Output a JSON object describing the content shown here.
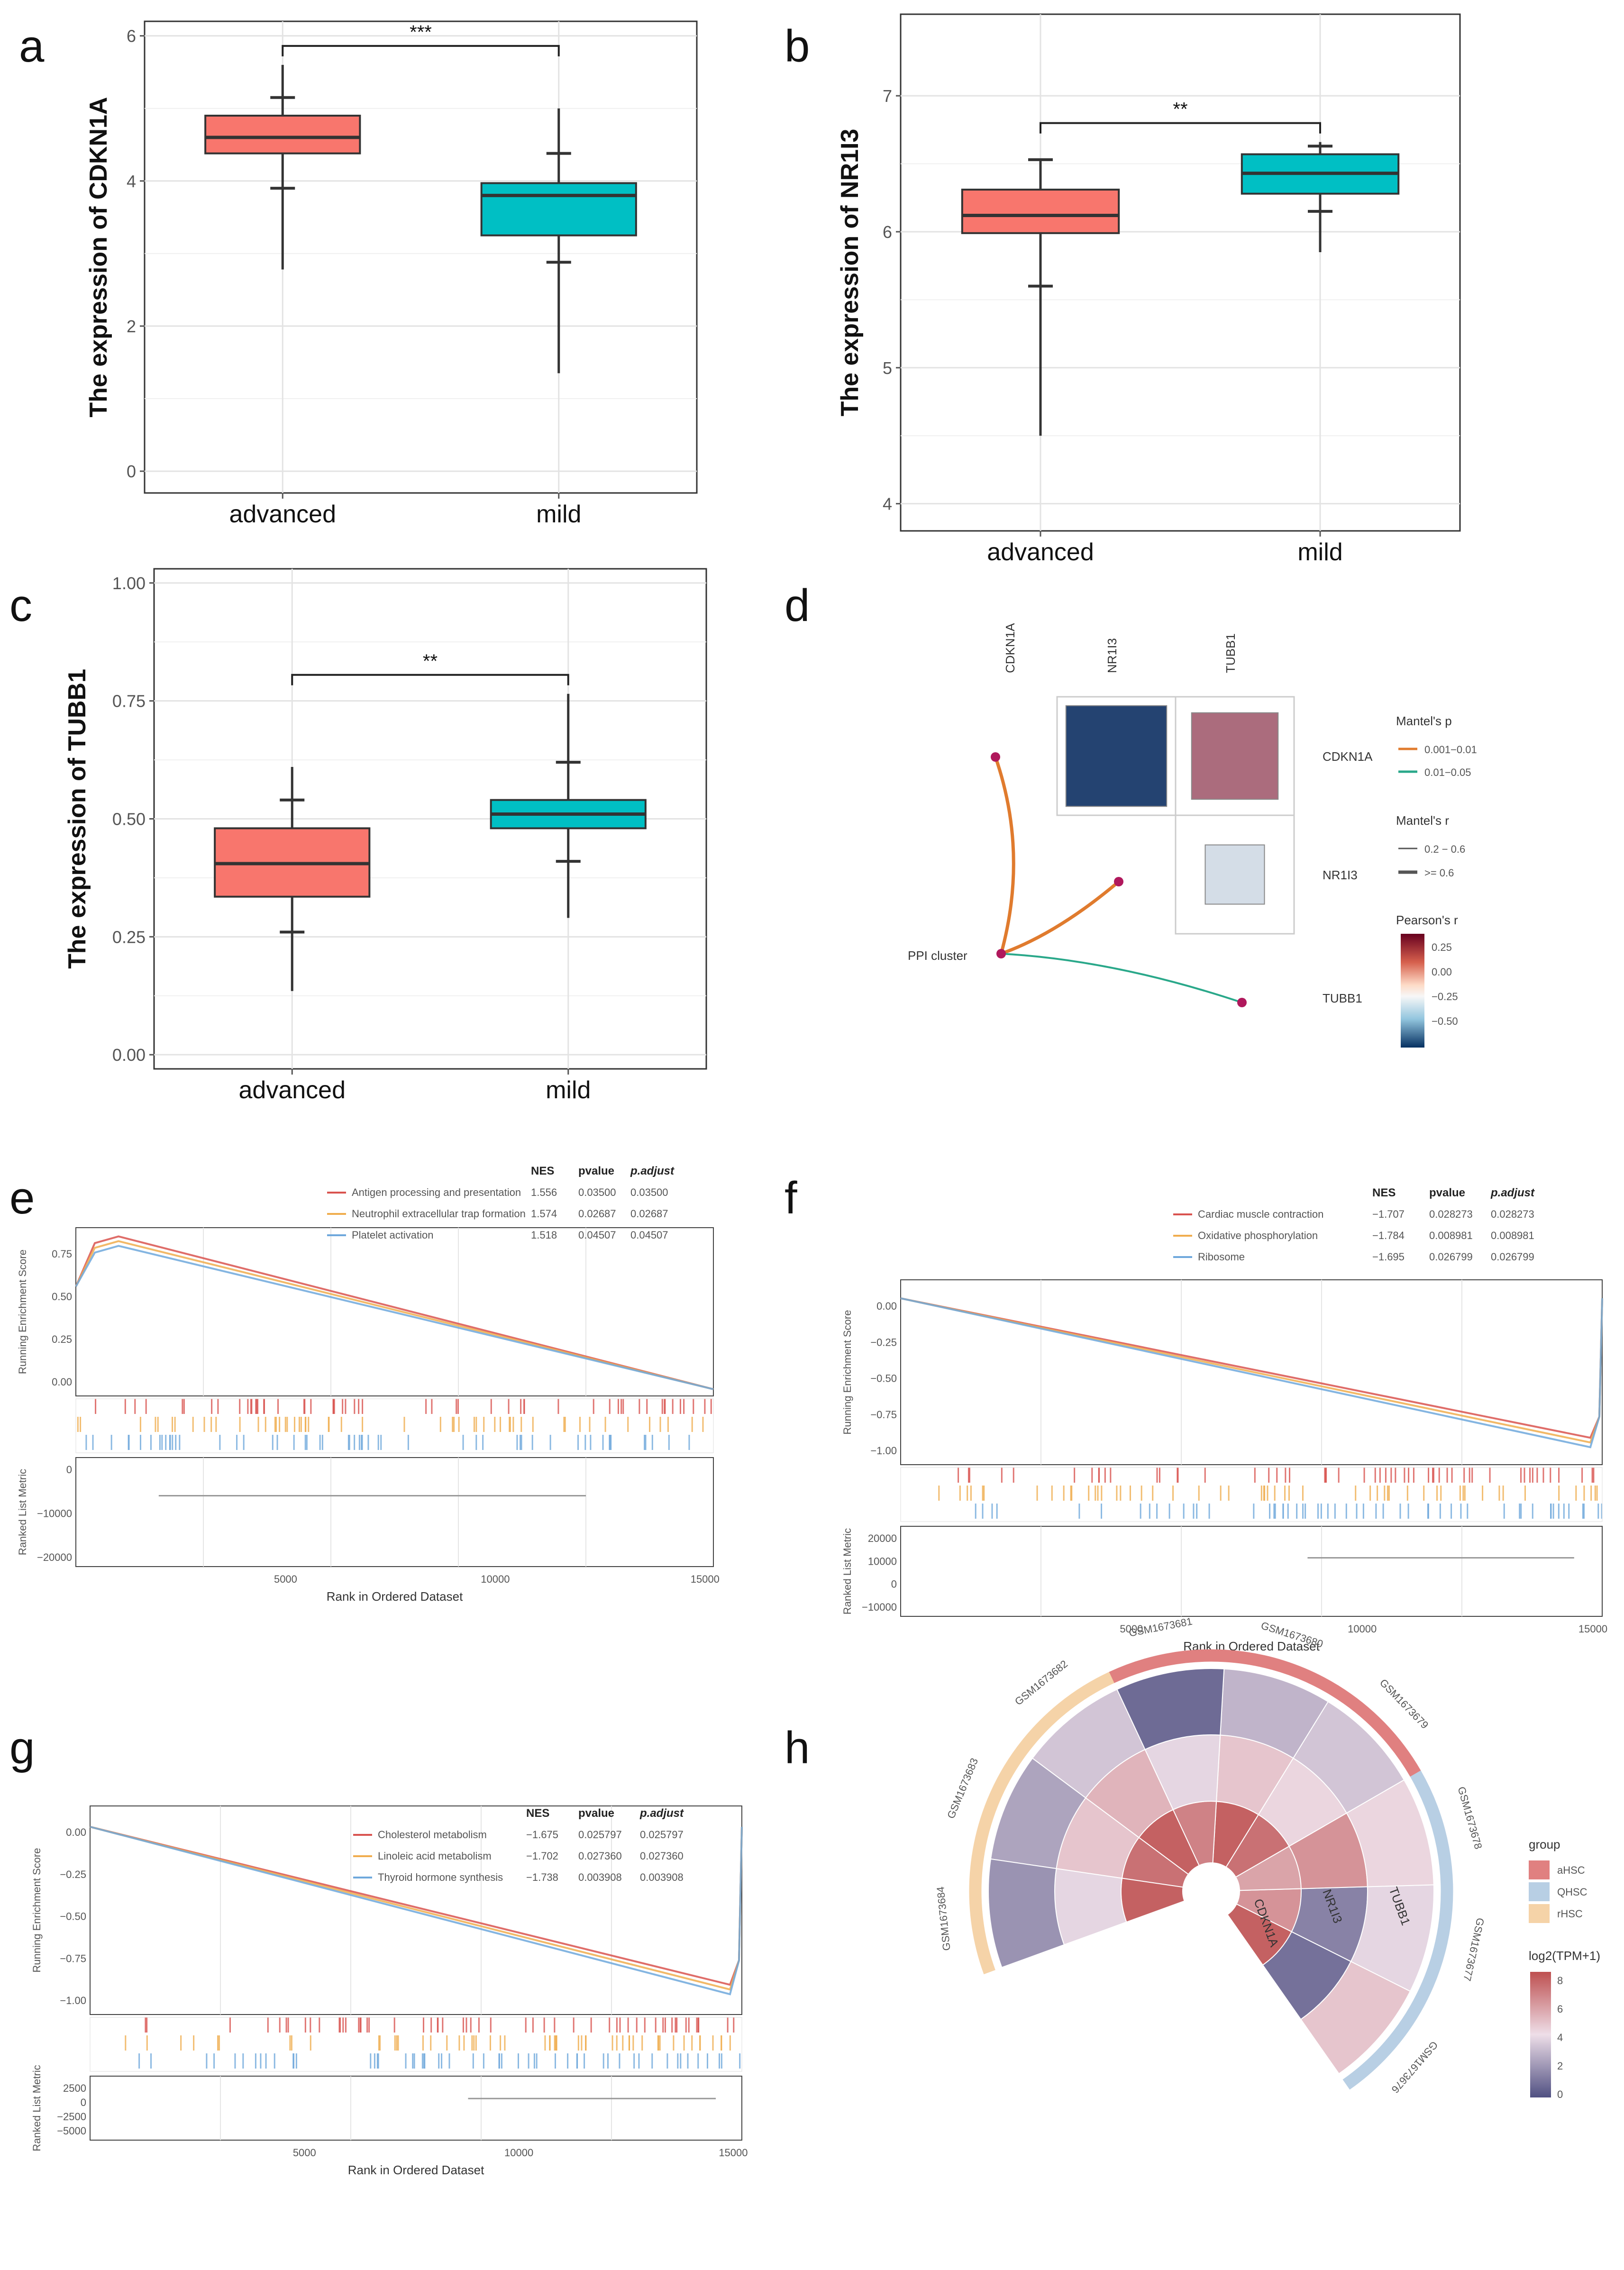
{
  "panel_labels": [
    "a",
    "b",
    "c",
    "d",
    "e",
    "f",
    "g",
    "h"
  ],
  "chart_data": [
    {
      "panel": "a",
      "type": "box",
      "ylabel": "The expression of CDKN1A",
      "categories": [
        "advanced",
        "mild"
      ],
      "ylim": [
        -0.3,
        6.2
      ],
      "yticks": [
        "0",
        "2",
        "4",
        "6"
      ],
      "boxes": [
        {
          "name": "advanced",
          "color": "#f8766d",
          "q1": 4.38,
          "median": 4.6,
          "q3": 4.9,
          "whisker_low": 2.78,
          "whisker_high": 5.6,
          "errbar": [
            3.9,
            5.15
          ]
        },
        {
          "name": "mild",
          "color": "#00bfc4",
          "q1": 3.25,
          "median": 3.8,
          "q3": 3.97,
          "whisker_low": 1.35,
          "whisker_high": 5.0,
          "errbar": [
            2.88,
            4.38
          ]
        }
      ],
      "significance": "***"
    },
    {
      "panel": "b",
      "type": "box",
      "ylabel": "The expression of NR1I3",
      "categories": [
        "advanced",
        "mild"
      ],
      "ylim": [
        3.8,
        7.6
      ],
      "yticks": [
        "4",
        "5",
        "6",
        "7"
      ],
      "boxes": [
        {
          "name": "advanced",
          "color": "#f8766d",
          "q1": 5.99,
          "median": 6.12,
          "q3": 6.31,
          "whisker_low": 4.5,
          "whisker_high": 6.53,
          "errbar": [
            5.6,
            6.53
          ]
        },
        {
          "name": "mild",
          "color": "#00bfc4",
          "q1": 6.28,
          "median": 6.43,
          "q3": 6.57,
          "whisker_low": 5.85,
          "whisker_high": 6.66,
          "errbar": [
            6.15,
            6.63
          ]
        }
      ],
      "significance": "**"
    },
    {
      "panel": "c",
      "type": "box",
      "ylabel": "The expression of TUBB1",
      "categories": [
        "advanced",
        "mild"
      ],
      "ylim": [
        -0.03,
        1.03
      ],
      "yticks": [
        "0.00",
        "0.25",
        "0.50",
        "0.75",
        "1.00"
      ],
      "boxes": [
        {
          "name": "advanced",
          "color": "#f8766d",
          "q1": 0.335,
          "median": 0.405,
          "q3": 0.48,
          "whisker_low": 0.135,
          "whisker_high": 0.61,
          "errbar": [
            0.26,
            0.54
          ]
        },
        {
          "name": "mild",
          "color": "#00bfc4",
          "q1": 0.48,
          "median": 0.51,
          "q3": 0.54,
          "whisker_low": 0.29,
          "whisker_high": 0.765,
          "errbar": [
            0.41,
            0.62
          ]
        }
      ],
      "significance": "**"
    },
    {
      "panel": "d",
      "type": "heatmap",
      "genes": [
        "CDKN1A",
        "NR1I3",
        "TUBB1"
      ],
      "pearson": [
        [
          "CDKN1A",
          "NR1I3",
          -0.5
        ],
        [
          "CDKN1A",
          "TUBB1",
          0.3
        ],
        [
          "NR1I3",
          "TUBB1",
          -0.05
        ]
      ],
      "source": "PPI cluster",
      "mantel_links": [
        {
          "to": "CDKN1A",
          "p": "0.001-0.01"
        },
        {
          "to": "NR1I3",
          "p": "0.001-0.01"
        },
        {
          "to": "TUBB1",
          "p": "0.01-0.05"
        }
      ],
      "legend": {
        "mantel_p_title": "Mantel's p",
        "mantel_p_items": [
          {
            "label": "0.001−0.01",
            "color": "#e07b2e"
          },
          {
            "label": "0.01−0.05",
            "color": "#2aa88a"
          }
        ],
        "mantel_r_title": "Mantel's r",
        "mantel_r_items": [
          "0.2 − 0.6",
          ">= 0.6"
        ],
        "pearson_title": "Pearson's r",
        "pearson_ticks": [
          "0.25",
          "0.00",
          "−0.25",
          "−0.50"
        ]
      }
    },
    {
      "panel": "e",
      "type": "line",
      "ylabel_top": "Running Enrichment Score",
      "ylabel_bottom": "Ranked List Metric",
      "xlabel": "Rank in Ordered Dataset",
      "xticks": [
        "5000",
        "10000",
        "15000"
      ],
      "yticks_top": [
        "0.75",
        "0.50",
        "0.25",
        "0.00"
      ],
      "yticks_bottom": [
        "0",
        "−10000",
        "−20000"
      ],
      "table_headers": [
        "NES",
        "pvalue",
        "p.adjust"
      ],
      "series": [
        {
          "name": "Antigen processing and presentation",
          "color": "#d9534f",
          "nes": "1.556",
          "pvalue": "0.03500",
          "padjust": "0.03500"
        },
        {
          "name": "Neutrophil extracellular trap formation",
          "color": "#f0ad4e",
          "nes": "1.574",
          "pvalue": "0.02687",
          "padjust": "0.02687"
        },
        {
          "name": "Platelet activation",
          "color": "#6fa8dc",
          "nes": "1.518",
          "pvalue": "0.04507",
          "padjust": "0.04507"
        }
      ]
    },
    {
      "panel": "f",
      "type": "line",
      "ylabel_top": "Running Enrichment Score",
      "ylabel_bottom": "Ranked List Metric",
      "xlabel": "Rank in Ordered Dataset",
      "xticks": [
        "5000",
        "10000",
        "15000"
      ],
      "yticks_top": [
        "0.00",
        "−0.25",
        "−0.50",
        "−0.75",
        "−1.00"
      ],
      "yticks_bottom": [
        "20000",
        "10000",
        "0",
        "−10000"
      ],
      "table_headers": [
        "NES",
        "pvalue",
        "p.adjust"
      ],
      "series": [
        {
          "name": "Cardiac muscle contraction",
          "color": "#d9534f",
          "nes": "−1.707",
          "pvalue": "0.028273",
          "padjust": "0.028273"
        },
        {
          "name": "Oxidative phosphorylation",
          "color": "#f0ad4e",
          "nes": "−1.784",
          "pvalue": "0.008981",
          "padjust": "0.008981"
        },
        {
          "name": "Ribosome",
          "color": "#6fa8dc",
          "nes": "−1.695",
          "pvalue": "0.026799",
          "padjust": "0.026799"
        }
      ]
    },
    {
      "panel": "g",
      "type": "line",
      "ylabel_top": "Running Enrichment Score",
      "ylabel_bottom": "Ranked List Metric",
      "xlabel": "Rank in Ordered Dataset",
      "xticks": [
        "5000",
        "10000",
        "15000"
      ],
      "yticks_top": [
        "0.00",
        "−0.25",
        "−0.50",
        "−0.75",
        "−1.00"
      ],
      "yticks_bottom": [
        "2500",
        "0",
        "−2500",
        "−5000"
      ],
      "table_headers": [
        "NES",
        "pvalue",
        "p.adjust"
      ],
      "series": [
        {
          "name": "Cholesterol metabolism",
          "color": "#d9534f",
          "nes": "−1.675",
          "pvalue": "0.025797",
          "padjust": "0.025797"
        },
        {
          "name": "Linoleic acid metabolism",
          "color": "#f0ad4e",
          "nes": "−1.702",
          "pvalue": "0.027360",
          "padjust": "0.027360"
        },
        {
          "name": "Thyroid hormone synthesis",
          "color": "#6fa8dc",
          "nes": "−1.738",
          "pvalue": "0.003908",
          "padjust": "0.003908"
        }
      ]
    },
    {
      "panel": "h",
      "type": "heatmap",
      "rings": [
        "CDKN1A",
        "NR1I3",
        "TUBB1"
      ],
      "samples": [
        "GSM1673676",
        "GSM1673677",
        "GSM1673678",
        "GSM1673679",
        "GSM1673680",
        "GSM1673681",
        "GSM1673682",
        "GSM1673683",
        "GSM1673684"
      ],
      "sample_groups": [
        "QHSC",
        "QHSC",
        "QHSC",
        "aHSC",
        "aHSC",
        "aHSC",
        "rHSC",
        "rHSC",
        "rHSC"
      ],
      "values": [
        [
          8.0,
          1.0,
          5.0
        ],
        [
          6.5,
          1.5,
          4.0
        ],
        [
          6.0,
          6.5,
          4.5
        ],
        [
          7.5,
          4.5,
          3.5
        ],
        [
          8.0,
          5.0,
          3.0
        ],
        [
          7.0,
          4.0,
          0.8
        ],
        [
          8.0,
          5.5,
          3.5
        ],
        [
          7.5,
          5.0,
          2.5
        ],
        [
          8.0,
          4.0,
          2.0
        ]
      ],
      "legend": {
        "group_title": "group",
        "groups": [
          {
            "name": "aHSC",
            "color": "#e08080"
          },
          {
            "name": "QHSC",
            "color": "#b8cfe4"
          },
          {
            "name": "rHSC",
            "color": "#f5d3a8"
          }
        ],
        "scale_title": "log2(TPM+1)",
        "scale_ticks": [
          "8",
          "6",
          "4",
          "2",
          "0"
        ]
      }
    }
  ]
}
